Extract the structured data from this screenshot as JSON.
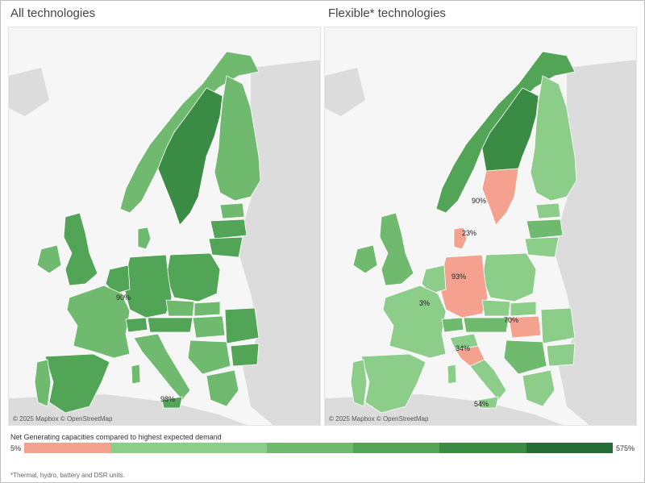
{
  "panels": [
    {
      "title": "All technologies",
      "attribution": "© 2025 Mapbox © OpenStreetMap",
      "labels": [
        "90%",
        "98%"
      ]
    },
    {
      "title": "Flexible* technologies",
      "attribution": "© 2025 Mapbox © OpenStreetMap",
      "labels": [
        "90%",
        "23%",
        "93%",
        "3%",
        "70%",
        "34%",
        "54%"
      ]
    }
  ],
  "legend": {
    "title": "Net Generating capacities compared to highest expected demand",
    "min_label": "5%",
    "max_label": "575%",
    "colors": [
      "#f4a28f",
      "#8ccd8a",
      "#6fba6f",
      "#52a456",
      "#3a8c45",
      "#276e36"
    ]
  },
  "footnote": "*Thermal, hydro, battery and DSR units.",
  "colors": {
    "land_background": "#dcdcdc",
    "sea": "#f6f6f6",
    "deficit": "#f4a28f",
    "light_green": "#8ccd8a",
    "mid_green": "#6fba6f",
    "green": "#52a456",
    "dark_green": "#3a8c45",
    "darkest_green": "#276e36"
  }
}
